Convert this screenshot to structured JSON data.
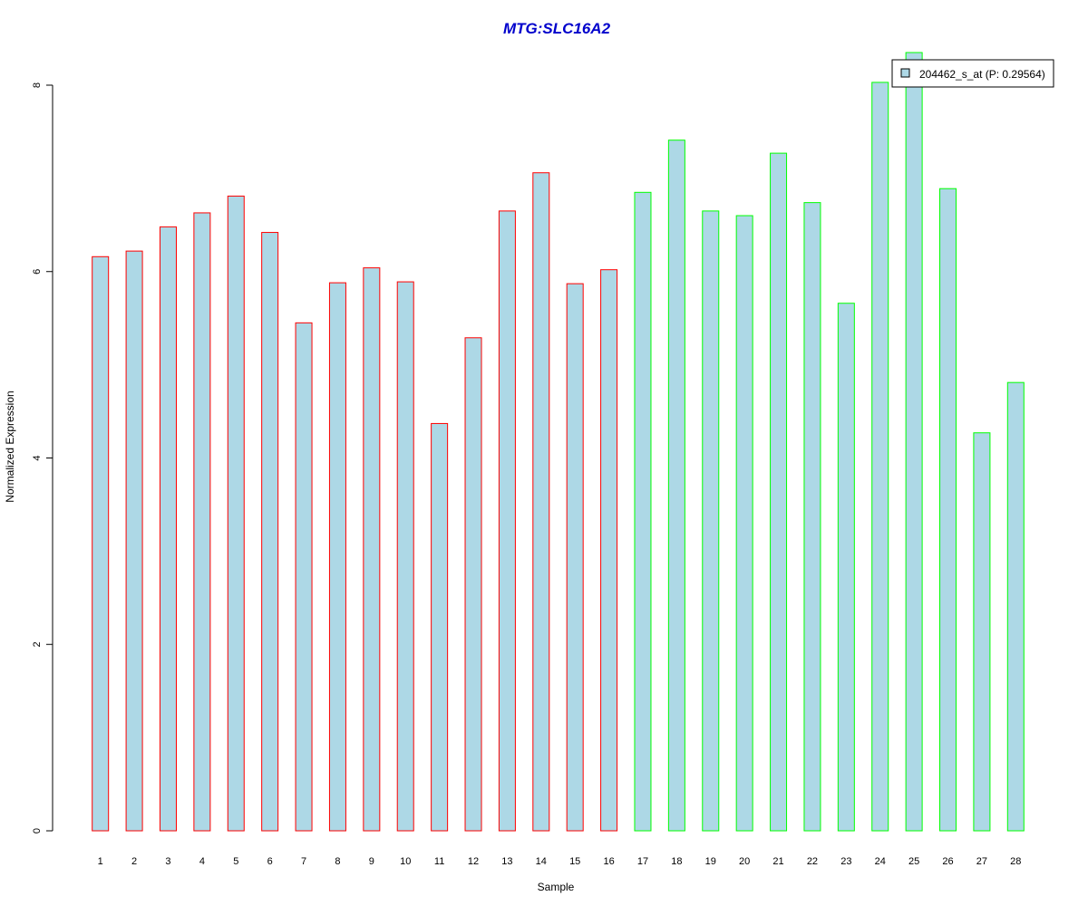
{
  "chart_data": {
    "type": "bar",
    "title": "MTG:SLC16A2",
    "xlabel": "Sample",
    "ylabel": "Normalized Expression",
    "ylim": [
      0,
      8
    ],
    "yticks": [
      "0",
      "2",
      "4",
      "6",
      "8"
    ],
    "categories": [
      "1",
      "2",
      "3",
      "4",
      "5",
      "6",
      "7",
      "8",
      "9",
      "10",
      "11",
      "12",
      "13",
      "14",
      "15",
      "16",
      "17",
      "18",
      "19",
      "20",
      "21",
      "22",
      "23",
      "24",
      "25",
      "26",
      "27",
      "28"
    ],
    "series": [
      {
        "name": "204462_s_at (P: 0.29564)",
        "values": [
          6.16,
          6.22,
          6.48,
          6.63,
          6.81,
          6.42,
          5.45,
          5.88,
          6.04,
          5.89,
          4.37,
          5.29,
          6.65,
          7.06,
          5.87,
          6.02,
          6.85,
          7.41,
          6.65,
          6.6,
          7.27,
          6.74,
          5.66,
          8.03,
          8.35,
          6.89,
          4.27,
          4.81
        ]
      }
    ],
    "bar_fill": "#add8e6",
    "group_border_colors": [
      "#ff0000",
      "#ff0000",
      "#ff0000",
      "#ff0000",
      "#ff0000",
      "#ff0000",
      "#ff0000",
      "#ff0000",
      "#ff0000",
      "#ff0000",
      "#ff0000",
      "#ff0000",
      "#ff0000",
      "#ff0000",
      "#ff0000",
      "#ff0000",
      "#00ff00",
      "#00ff00",
      "#00ff00",
      "#00ff00",
      "#00ff00",
      "#00ff00",
      "#00ff00",
      "#00ff00",
      "#00ff00",
      "#00ff00",
      "#00ff00",
      "#00ff00"
    ],
    "title_color": "#0000cc",
    "legend_position": "top-right",
    "grid": false
  }
}
